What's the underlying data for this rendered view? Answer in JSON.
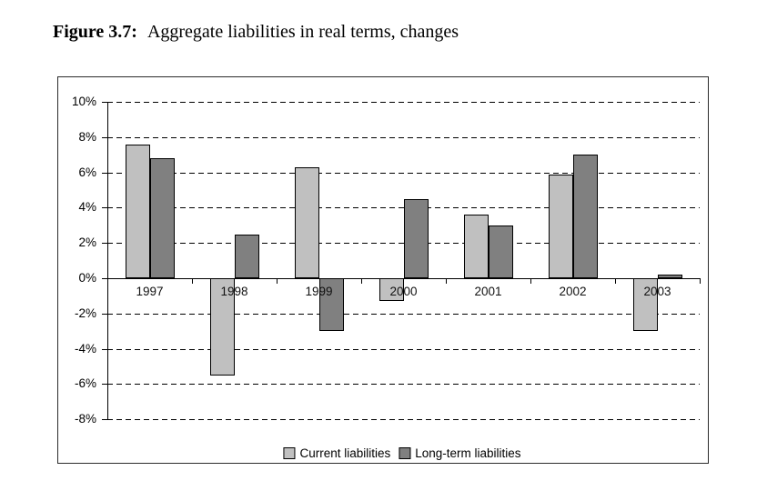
{
  "title": {
    "prefix": "Figure 3.7:",
    "caption": "Aggregate liabilities in real terms, changes"
  },
  "chart_data": {
    "type": "bar",
    "title": "Figure 3.7: Aggregate liabilities in real terms, changes",
    "categories": [
      "1997",
      "1998",
      "1999",
      "2000",
      "2001",
      "2002",
      "2003"
    ],
    "series": [
      {
        "name": "Current liabilities",
        "color": "#C0C0C0",
        "values": [
          7.6,
          -5.5,
          6.3,
          -1.3,
          3.6,
          5.9,
          -3.0
        ]
      },
      {
        "name": "Long-term liabilities",
        "color": "#808080",
        "values": [
          6.8,
          2.5,
          -3.0,
          4.5,
          3.0,
          7.0,
          0.2
        ]
      }
    ],
    "xlabel": "",
    "ylabel": "",
    "ylim": [
      -8,
      10
    ],
    "yticks": [
      {
        "value": 10,
        "label": "10%"
      },
      {
        "value": 8,
        "label": "8%"
      },
      {
        "value": 6,
        "label": "6%"
      },
      {
        "value": 4,
        "label": "4%"
      },
      {
        "value": 2,
        "label": "2%"
      },
      {
        "value": 0,
        "label": "0%"
      },
      {
        "value": -2,
        "label": "-2%"
      },
      {
        "value": -4,
        "label": "-4%"
      },
      {
        "value": -6,
        "label": "-6%"
      },
      {
        "value": -8,
        "label": "-8%"
      }
    ],
    "grid": "horizontal-dashed",
    "legend_position": "bottom"
  }
}
